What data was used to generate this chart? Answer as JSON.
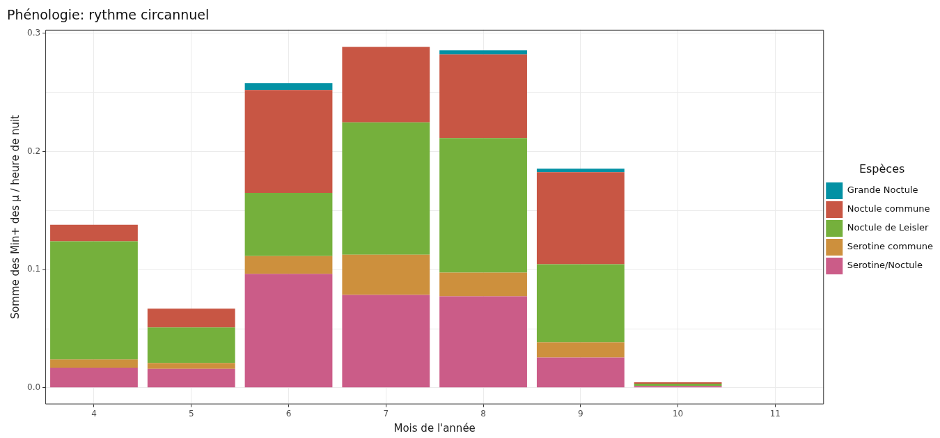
{
  "chart_data": {
    "type": "bar",
    "title": "Phénologie: rythme circannuel",
    "xlabel": "Mois de l'année",
    "ylabel": "Somme des Min+ des µ / heure de nuit",
    "legend_title": "Espèces",
    "categories": [
      "4",
      "5",
      "6",
      "7",
      "8",
      "9",
      "10",
      "11"
    ],
    "stacked": true,
    "grid": true,
    "legend": "right",
    "ylim": [
      -0.014,
      0.303
    ],
    "yticks": [
      {
        "value": 0,
        "label": "0.0"
      },
      {
        "value": 0.05,
        "label": null
      },
      {
        "value": 0.1,
        "label": "0.1"
      },
      {
        "value": 0.15,
        "label": null
      },
      {
        "value": 0.2,
        "label": "0.2"
      },
      {
        "value": 0.25,
        "label": null
      },
      {
        "value": 0.3,
        "label": "0.3"
      }
    ],
    "series": [
      {
        "name": "Serotine/Noctule",
        "color": "#cb5c88",
        "values": [
          0.017,
          0.016,
          0.0965,
          0.0786,
          0.0774,
          0.0255,
          0.0016,
          null
        ]
      },
      {
        "name": "Serotine commune",
        "color": "#cd903d",
        "values": [
          0.007,
          0.005,
          0.015,
          0.034,
          0.02,
          0.013,
          null,
          null
        ]
      },
      {
        "name": "Noctule de Leisler",
        "color": "#75b03c",
        "values": [
          0.1,
          0.03,
          0.0535,
          0.112,
          0.114,
          0.066,
          0.0019,
          null
        ]
      },
      {
        "name": "Noctule commune",
        "color": "#c85644",
        "values": [
          0.014,
          0.016,
          0.087,
          0.064,
          0.0707,
          0.078,
          0.0012,
          null
        ]
      },
      {
        "name": "Grande Noctule",
        "color": "#0391a4",
        "values": [
          null,
          null,
          0.006,
          null,
          0.0035,
          0.003,
          null,
          null
        ]
      }
    ]
  }
}
